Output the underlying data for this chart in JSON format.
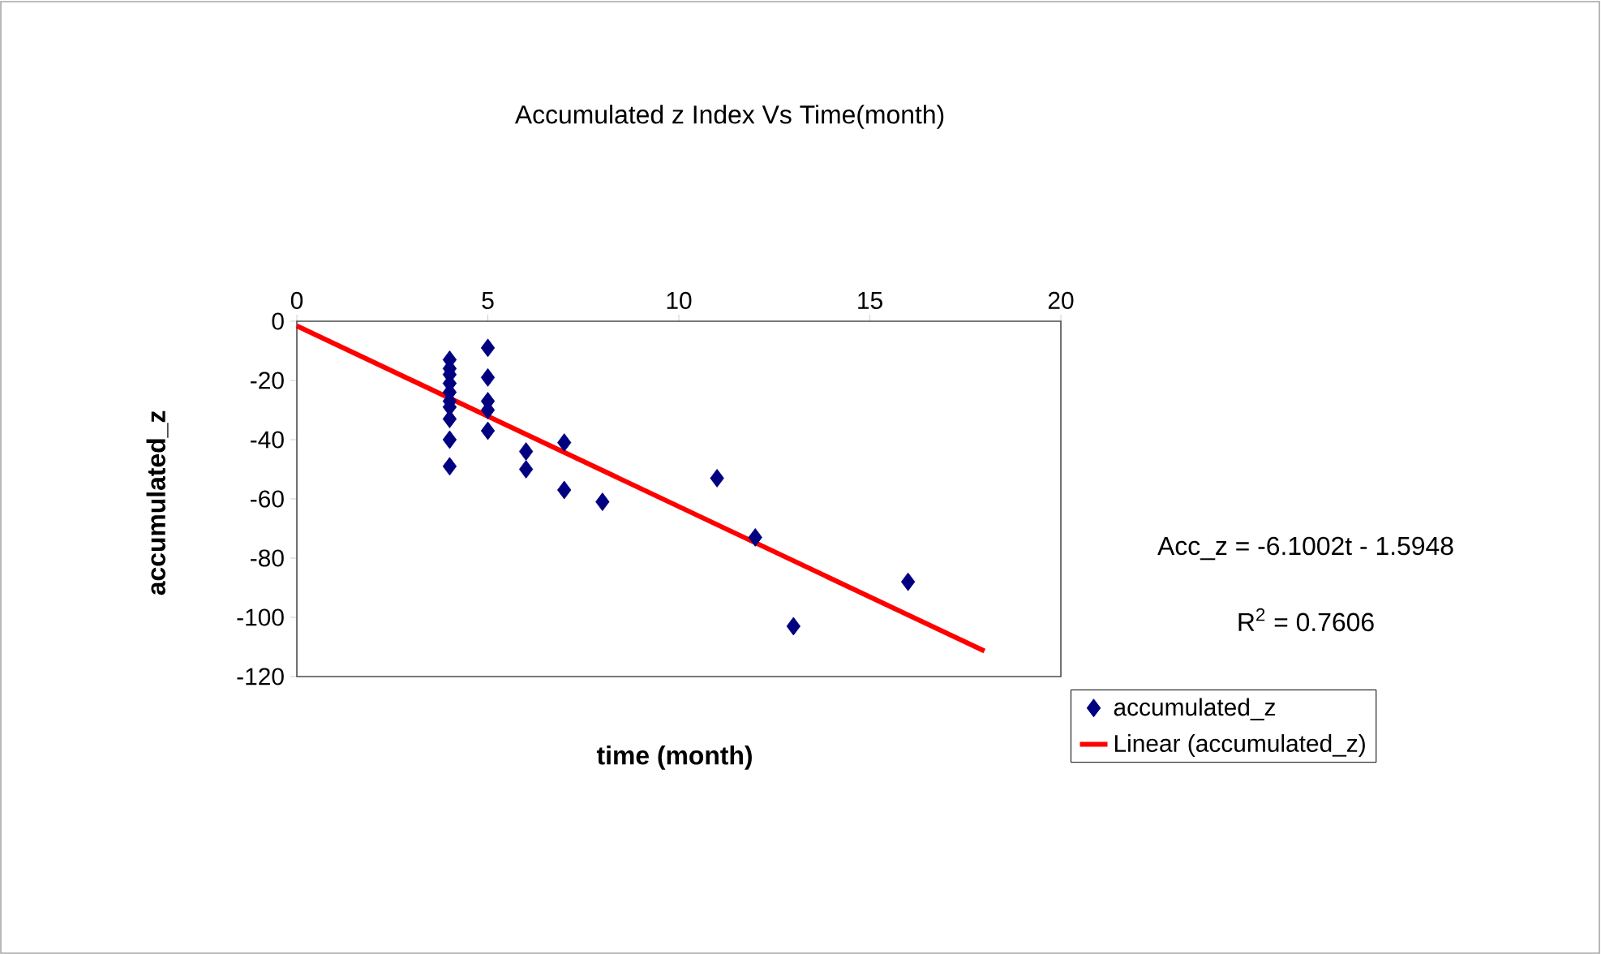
{
  "chart_data": {
    "type": "scatter",
    "title": "Accumulated  z Index  Vs Time(month)",
    "xlabel": "time (month)",
    "ylabel": "accumulated_z",
    "annotations": [
      "Acc_z = -6.1002t - 1.5948",
      "R$^{2}$ = 0.7606"
    ],
    "xlim": [
      0,
      20
    ],
    "ylim": [
      -120,
      0
    ],
    "xticks": [
      0,
      5,
      10,
      15,
      20
    ],
    "yticks": [
      -120,
      -100,
      -80,
      -60,
      -40,
      -20,
      0
    ],
    "legend": "right",
    "grid": false,
    "series": [
      {
        "name": "accumulated_z",
        "color": "#000080",
        "marker": "diamond",
        "x": [
          4,
          4,
          4,
          4,
          4,
          4,
          4,
          4,
          4,
          4,
          5,
          5,
          5,
          5,
          5,
          6,
          6,
          7,
          7,
          8,
          11,
          12,
          13,
          16
        ],
        "values": [
          -13,
          -16,
          -18,
          -21,
          -24,
          -27,
          -29,
          -33,
          -40,
          -49,
          -9,
          -19,
          -27,
          -30,
          -37,
          -44,
          -50,
          -41,
          -57,
          -61,
          -53,
          -73,
          -103,
          -88
        ]
      },
      {
        "name": "Linear (accumulated_z)",
        "type": "line",
        "color": "#ff0000",
        "x": [
          0,
          18
        ],
        "values": [
          -1.6,
          -111.4
        ]
      }
    ]
  }
}
